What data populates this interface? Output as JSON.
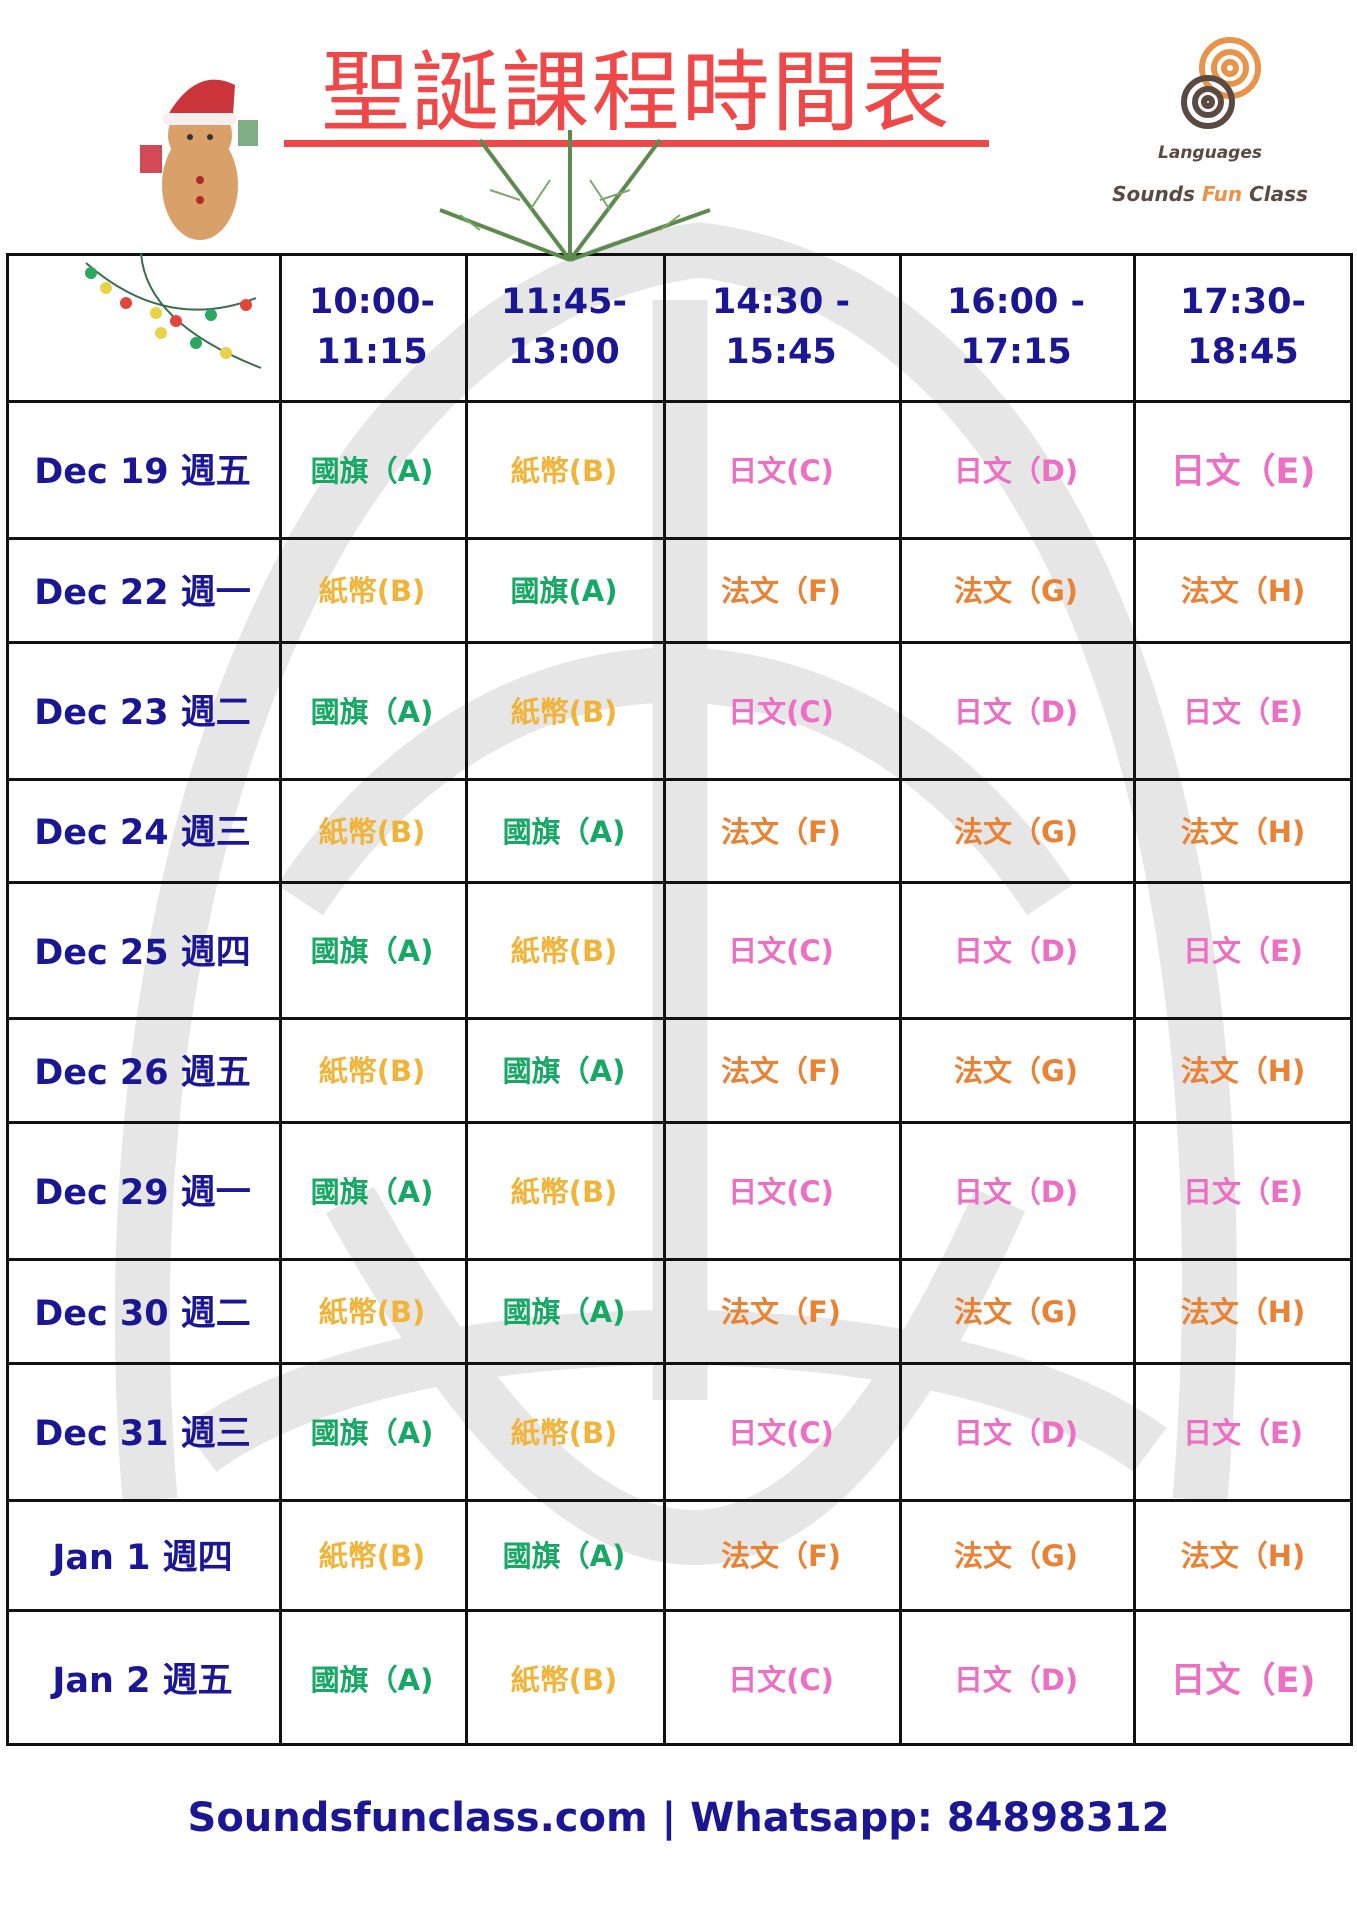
{
  "title": "聖誕課程時間表",
  "logo": {
    "arc_text": "Languages",
    "brand_prefix": "Sounds ",
    "brand_fun": "Fun",
    "brand_suffix": " Class"
  },
  "colors": {
    "navy": "#1b1794",
    "title_red": "#f04848",
    "green": "#18a866",
    "yellow": "#f0b43a",
    "pink": "#ec6fc4",
    "orange": "#ea8236"
  },
  "headers": [
    "10:00-\n11:15",
    "11:45-\n13:00",
    "14:30 -\n15:45",
    "16:00 -\n17:15",
    "17:30-\n18:45"
  ],
  "rows": [
    {
      "date": "Dec 19 週五",
      "cells": [
        {
          "t": "國旗（A)",
          "c": "green"
        },
        {
          "t": "紙幣(B)",
          "c": "yellow"
        },
        {
          "t": "日文(C)",
          "c": "pink"
        },
        {
          "t": "日文（D)",
          "c": "pink"
        },
        {
          "t": "日文（E)",
          "c": "pink big"
        }
      ]
    },
    {
      "date": "Dec 22 週一",
      "cells": [
        {
          "t": "紙幣(B)",
          "c": "yellow"
        },
        {
          "t": "國旗(A)",
          "c": "green"
        },
        {
          "t": "法文（F)",
          "c": "orange"
        },
        {
          "t": "法文（G)",
          "c": "orange"
        },
        {
          "t": "法文（H)",
          "c": "orange"
        }
      ]
    },
    {
      "date": "Dec 23 週二",
      "cells": [
        {
          "t": "國旗（A)",
          "c": "green"
        },
        {
          "t": "紙幣(B)",
          "c": "yellow"
        },
        {
          "t": "日文(C)",
          "c": "pink"
        },
        {
          "t": "日文（D)",
          "c": "pink"
        },
        {
          "t": "日文（E)",
          "c": "pink"
        }
      ]
    },
    {
      "date": "Dec 24 週三",
      "cells": [
        {
          "t": "紙幣(B)",
          "c": "yellow"
        },
        {
          "t": "國旗（A)",
          "c": "green"
        },
        {
          "t": "法文（F)",
          "c": "orange"
        },
        {
          "t": "法文（G)",
          "c": "orange"
        },
        {
          "t": "法文（H)",
          "c": "orange"
        }
      ]
    },
    {
      "date": "Dec 25 週四",
      "cells": [
        {
          "t": "國旗（A)",
          "c": "green"
        },
        {
          "t": "紙幣(B)",
          "c": "yellow"
        },
        {
          "t": "日文(C)",
          "c": "pink"
        },
        {
          "t": "日文（D)",
          "c": "pink"
        },
        {
          "t": "日文（E)",
          "c": "pink"
        }
      ]
    },
    {
      "date": "Dec 26 週五",
      "cells": [
        {
          "t": "紙幣(B)",
          "c": "yellow"
        },
        {
          "t": "國旗（A)",
          "c": "green"
        },
        {
          "t": "法文（F)",
          "c": "orange"
        },
        {
          "t": "法文（G)",
          "c": "orange"
        },
        {
          "t": "法文（H)",
          "c": "orange"
        }
      ]
    },
    {
      "date": "Dec 29 週一",
      "cells": [
        {
          "t": "國旗（A)",
          "c": "green"
        },
        {
          "t": "紙幣(B)",
          "c": "yellow"
        },
        {
          "t": "日文(C)",
          "c": "pink"
        },
        {
          "t": "日文（D)",
          "c": "pink"
        },
        {
          "t": "日文（E)",
          "c": "pink"
        }
      ]
    },
    {
      "date": "Dec 30 週二",
      "cells": [
        {
          "t": "紙幣(B)",
          "c": "yellow"
        },
        {
          "t": "國旗（A)",
          "c": "green"
        },
        {
          "t": "法文（F)",
          "c": "orange"
        },
        {
          "t": "法文（G)",
          "c": "orange"
        },
        {
          "t": "法文（H)",
          "c": "orange"
        }
      ]
    },
    {
      "date": "Dec 31  週三",
      "cells": [
        {
          "t": "國旗（A)",
          "c": "green"
        },
        {
          "t": "紙幣(B)",
          "c": "yellow"
        },
        {
          "t": "日文(C)",
          "c": "pink"
        },
        {
          "t": "日文（D)",
          "c": "pink"
        },
        {
          "t": "日文（E)",
          "c": "pink"
        }
      ]
    },
    {
      "date": "Jan 1 週四",
      "cells": [
        {
          "t": "紙幣(B)",
          "c": "yellow"
        },
        {
          "t": "國旗（A)",
          "c": "green"
        },
        {
          "t": "法文（F)",
          "c": "orange"
        },
        {
          "t": "法文（G)",
          "c": "orange"
        },
        {
          "t": "法文（H)",
          "c": "orange"
        }
      ]
    },
    {
      "date": "Jan 2 週五",
      "cells": [
        {
          "t": "國旗（A)",
          "c": "green"
        },
        {
          "t": "紙幣(B)",
          "c": "yellow"
        },
        {
          "t": "日文(C)",
          "c": "pink"
        },
        {
          "t": "日文（D)",
          "c": "pink"
        },
        {
          "t": "日文（E)",
          "c": "pink big"
        }
      ]
    }
  ],
  "footer": "Soundsfunclass.com | Whatsapp: 84898312"
}
